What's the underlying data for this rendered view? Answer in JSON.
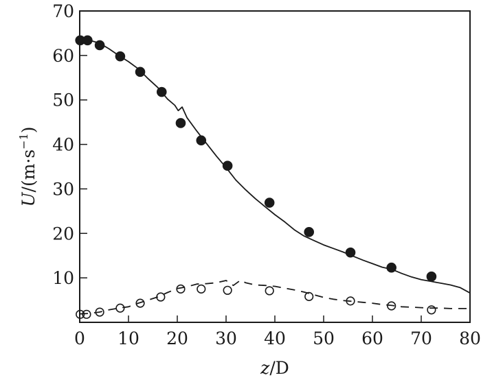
{
  "chart_data": {
    "type": "line",
    "title": "",
    "xlabel": "z/D",
    "ylabel": "U/(m·s⁻¹)",
    "xlim": [
      0,
      80
    ],
    "ylim": [
      0,
      70
    ],
    "xticks": [
      0,
      10,
      20,
      30,
      40,
      50,
      60,
      70,
      80
    ],
    "yticks": [
      10,
      20,
      30,
      40,
      50,
      60,
      70
    ],
    "grid": false,
    "legend": null,
    "series": [
      {
        "name": "filled-circles",
        "kind": "scatter",
        "marker": "filled-circle",
        "x": [
          0.1,
          1.6,
          4.1,
          8.3,
          12.4,
          16.8,
          20.7,
          24.9,
          30.3,
          38.9,
          47.0,
          55.5,
          63.9,
          72.1
        ],
        "y": [
          63.4,
          63.4,
          62.3,
          59.8,
          56.3,
          51.8,
          44.8,
          40.9,
          35.2,
          26.9,
          20.3,
          15.7,
          12.3,
          10.3
        ]
      },
      {
        "name": "solid-line",
        "kind": "line",
        "style": "solid",
        "x": [
          0,
          2,
          4,
          6,
          8,
          10,
          12,
          14,
          16,
          18,
          19.5,
          20.2,
          21,
          22,
          24,
          26,
          28,
          30,
          32,
          34,
          36,
          38,
          40,
          42,
          44,
          46,
          48,
          50,
          52,
          54,
          56,
          58,
          60,
          62,
          64,
          66,
          68,
          70,
          72,
          74,
          76,
          78,
          80
        ],
        "y": [
          63.6,
          63.4,
          62.8,
          61.5,
          60.0,
          58.6,
          57.0,
          54.8,
          52.8,
          50.2,
          48.8,
          47.6,
          48.4,
          46.0,
          43.0,
          40.2,
          37.4,
          34.8,
          32.0,
          29.8,
          27.8,
          26.0,
          24.2,
          22.6,
          20.8,
          19.4,
          18.4,
          17.4,
          16.6,
          15.8,
          14.9,
          14.0,
          13.2,
          12.4,
          11.9,
          11.0,
          10.2,
          9.6,
          9.2,
          8.8,
          8.4,
          7.8,
          6.6
        ]
      },
      {
        "name": "open-circles",
        "kind": "scatter",
        "marker": "open-circle",
        "x": [
          0.1,
          1.4,
          4.1,
          8.3,
          12.4,
          16.6,
          20.7,
          24.9,
          30.3,
          38.9,
          47.0,
          55.5,
          63.9,
          72.1
        ],
        "y": [
          1.8,
          1.8,
          2.3,
          3.2,
          4.3,
          5.7,
          7.5,
          7.5,
          7.2,
          7.1,
          5.8,
          4.8,
          3.7,
          2.8
        ]
      },
      {
        "name": "dashed-line",
        "kind": "line",
        "style": "dashed",
        "x": [
          0,
          2,
          4,
          6,
          8,
          10,
          12,
          14,
          16,
          18,
          20,
          22,
          24,
          26,
          28,
          30,
          31.5,
          33,
          34,
          36,
          38,
          40,
          42,
          44,
          46,
          48,
          50,
          52,
          54,
          56,
          58,
          60,
          62,
          64,
          66,
          68,
          70,
          72,
          74,
          76,
          78,
          80
        ],
        "y": [
          1.9,
          2.0,
          2.3,
          2.8,
          3.2,
          3.5,
          4.3,
          5.0,
          5.7,
          6.7,
          7.6,
          8.0,
          8.6,
          8.7,
          8.9,
          9.4,
          8.3,
          9.5,
          8.9,
          8.4,
          8.3,
          8.1,
          7.7,
          7.3,
          6.8,
          6.2,
          5.6,
          5.2,
          4.9,
          4.7,
          4.5,
          4.3,
          4.0,
          3.8,
          3.5,
          3.4,
          3.3,
          3.2,
          3.2,
          3.1,
          3.1,
          3.1
        ]
      }
    ]
  },
  "axes": {
    "x_label_var": "z",
    "x_label_rest": "/D",
    "y_label_var": "U",
    "y_label_rest": "/(m·s",
    "y_label_sup": "−1",
    "y_label_close": ")"
  },
  "colors": {
    "ink": "#1a1a1a",
    "background": "#ffffff"
  }
}
